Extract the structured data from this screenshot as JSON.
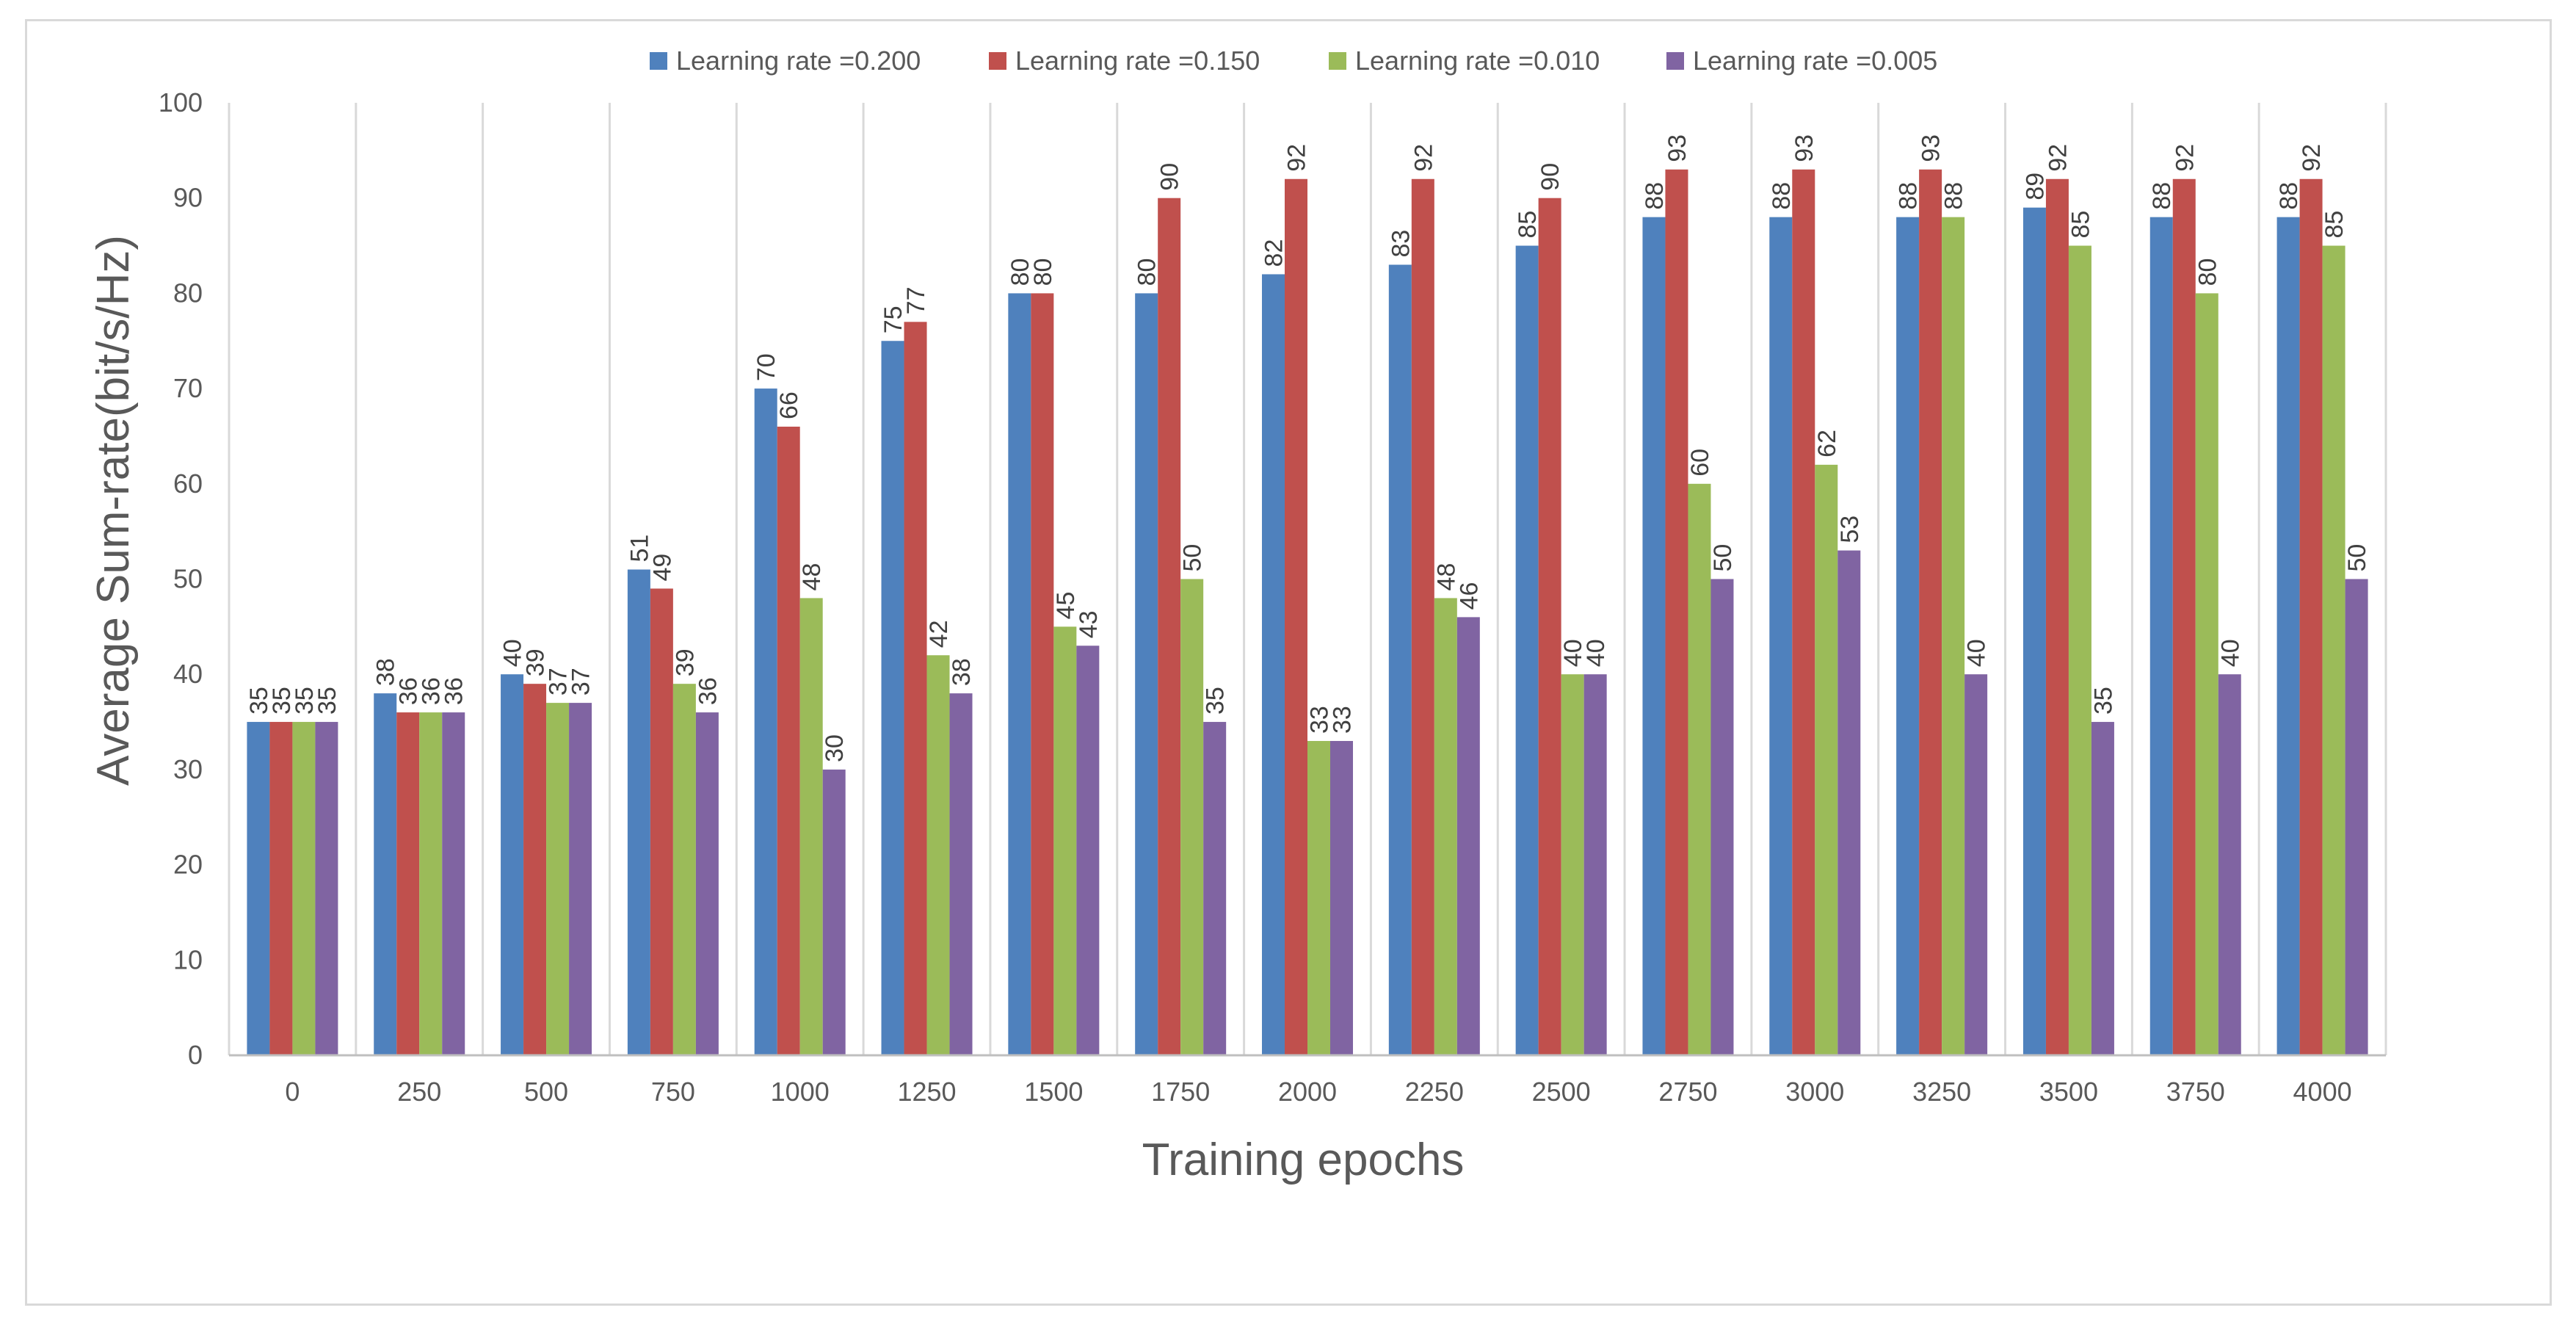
{
  "chart_data": {
    "type": "bar",
    "title": "",
    "xlabel": "Training epochs",
    "ylabel": "Average Sum-rate(bit/s/Hz)",
    "ylim": [
      0,
      100
    ],
    "yticks": [
      "0",
      "10",
      "20",
      "30",
      "40",
      "50",
      "60",
      "70",
      "80",
      "90",
      "100"
    ],
    "grid": "vertical category separators",
    "legend_position": "top-center",
    "categories": [
      "0",
      "250",
      "500",
      "750",
      "1000",
      "1250",
      "1500",
      "1750",
      "2000",
      "2250",
      "2500",
      "2750",
      "3000",
      "3250",
      "3500",
      "3750",
      "4000"
    ],
    "series": [
      {
        "name": "Learning rate =0.200",
        "color": "#4f81bd",
        "values": [
          35,
          38,
          40,
          51,
          70,
          75,
          80,
          80,
          82,
          83,
          85,
          88,
          88,
          88,
          89,
          88,
          88
        ]
      },
      {
        "name": "Learning rate =0.150",
        "color": "#c0504d",
        "values": [
          35,
          36,
          39,
          49,
          66,
          77,
          80,
          90,
          92,
          92,
          90,
          93,
          93,
          93,
          92,
          92,
          92
        ]
      },
      {
        "name": "Learning rate =0.010",
        "color": "#9bbb59",
        "values": [
          35,
          36,
          37,
          39,
          48,
          42,
          45,
          50,
          33,
          48,
          40,
          60,
          62,
          88,
          85,
          80,
          85
        ]
      },
      {
        "name": "Learning rate =0.005",
        "color": "#8064a2",
        "values": [
          35,
          36,
          37,
          36,
          30,
          38,
          43,
          35,
          33,
          46,
          40,
          50,
          53,
          40,
          35,
          40,
          50
        ]
      }
    ]
  },
  "colors": {
    "axis": "#bfbfbf",
    "text": "#595959",
    "frame": "#d9d9d9"
  }
}
